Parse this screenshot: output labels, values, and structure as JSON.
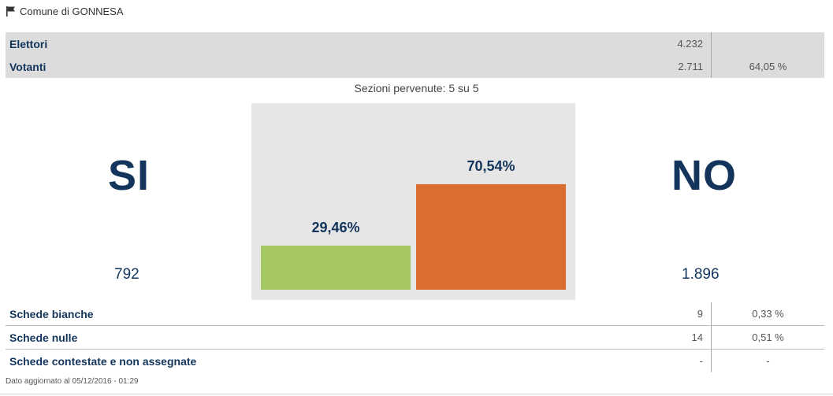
{
  "header": {
    "title": "Comune di GONNESA",
    "icon": "flag-icon"
  },
  "stats": [
    {
      "label": "Elettori",
      "value": "4.232",
      "percent": ""
    },
    {
      "label": "Votanti",
      "value": "2.711",
      "percent": "64,05 %"
    }
  ],
  "sezioni": "Sezioni pervenute: 5 su 5",
  "si": {
    "label": "SI",
    "count": "792"
  },
  "no": {
    "label": "NO",
    "count": "1.896"
  },
  "chart_data": {
    "type": "bar",
    "categories": [
      "SI",
      "NO"
    ],
    "values": [
      29.46,
      70.54
    ],
    "value_labels": [
      "29,46%",
      "70,54%"
    ],
    "colors": [
      "#a5c864",
      "#d96d32"
    ],
    "ylim": [
      0,
      100
    ]
  },
  "bottom": [
    {
      "label": "Schede bianche",
      "value": "9",
      "percent": "0,33 %"
    },
    {
      "label": "Schede nulle",
      "value": "14",
      "percent": "0,51 %"
    },
    {
      "label": "Schede contestate e non assegnate",
      "value": "-",
      "percent": "-"
    }
  ],
  "footer": "Dato aggiornato al 05/12/2016 - 01:29"
}
